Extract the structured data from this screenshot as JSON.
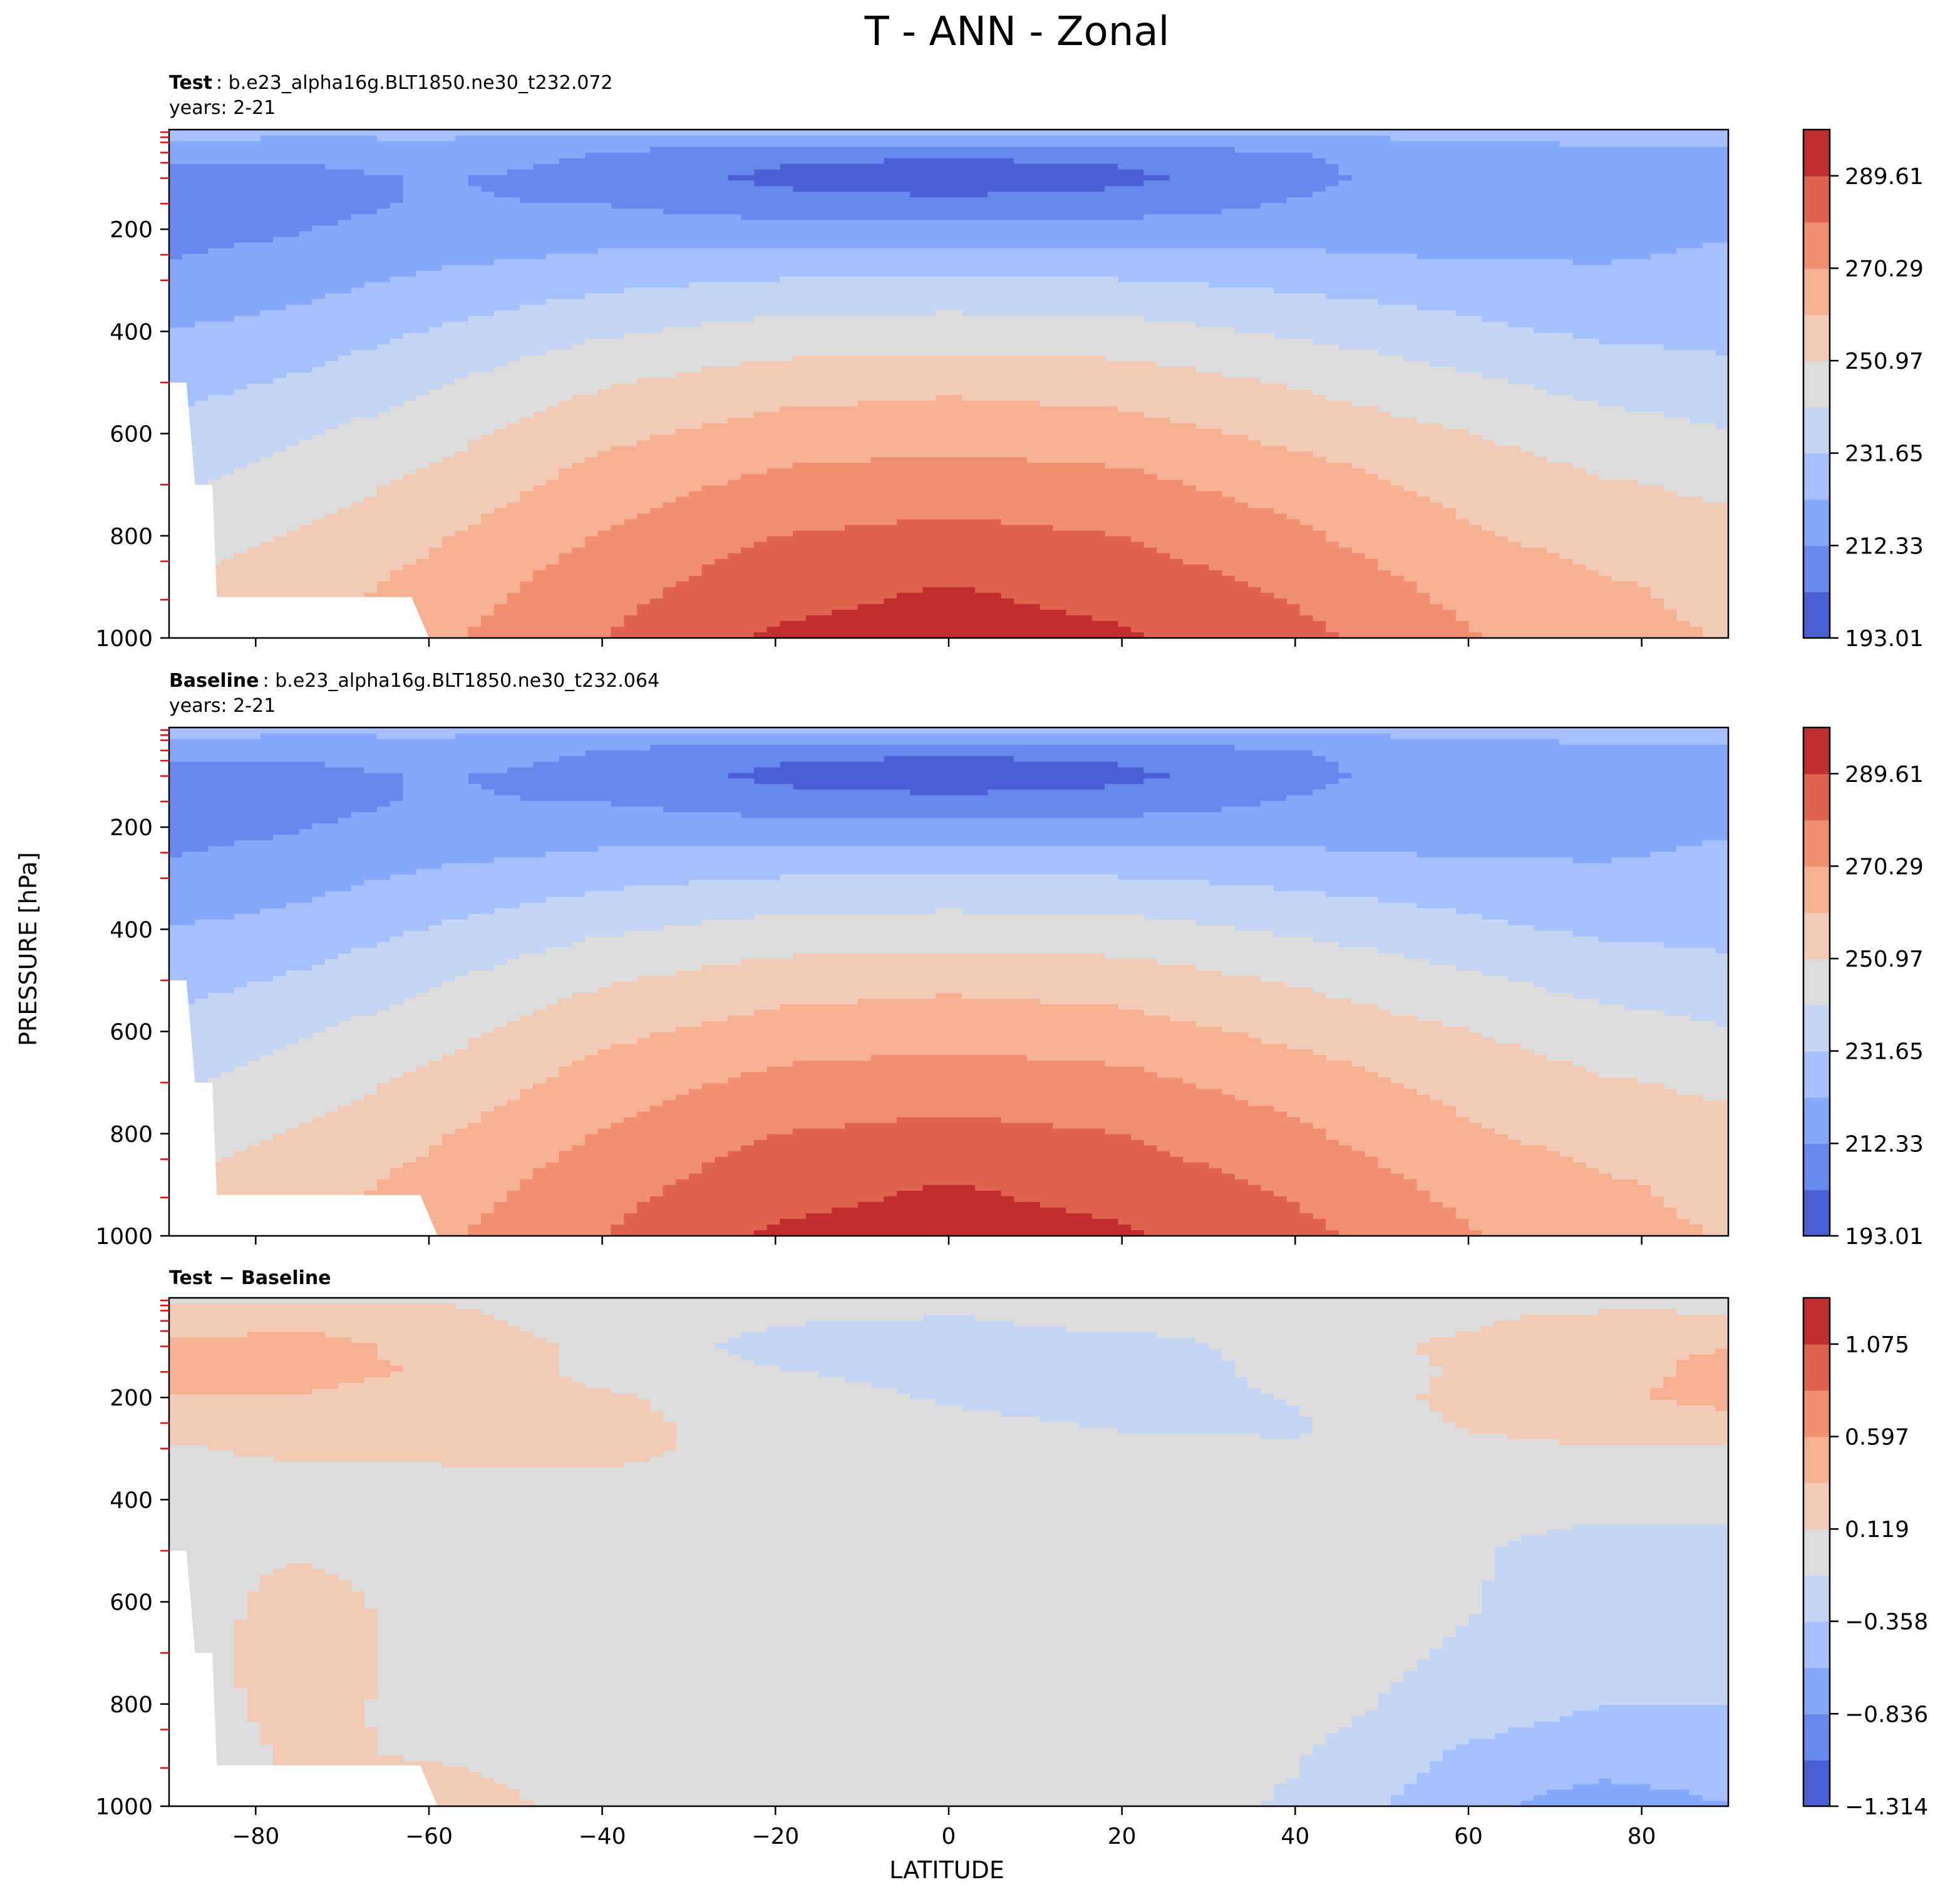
{
  "figure": {
    "title": "T - ANN - Zonal",
    "ylabel": "PRESSURE [hPa]",
    "xlabel": "LATITUDE"
  },
  "colors": {
    "levels": [
      "#4a5fd3",
      "#6788ec",
      "#86a8fb",
      "#a5c0fd",
      "#c4d5f4",
      "#dcdcdc",
      "#f2cbb7",
      "#f6b193",
      "#f18f71",
      "#df634f",
      "#c12e2f"
    ],
    "missing": "#ffffff",
    "tick_red": "#ff0000"
  },
  "chart_data": [
    {
      "type": "contourf",
      "panel": "test",
      "label_bold": "Test",
      "label_rest": ": b.e23_alpha16g.BLT1850.ne30_t232.072",
      "years": "years: 2-21",
      "xlim": [
        -90,
        90
      ],
      "ylim": [
        1000,
        5
      ],
      "yticks": [
        200,
        400,
        600,
        800,
        1000
      ],
      "xticks": [
        -80,
        -60,
        -40,
        -20,
        0,
        20,
        40,
        60,
        80
      ],
      "colorbar_ticks": [
        "193.01",
        "212.33",
        "231.65",
        "250.97",
        "270.29",
        "289.61"
      ],
      "colorbar_tick_values": [
        193.01,
        212.33,
        231.65,
        250.97,
        270.29,
        289.61
      ],
      "vmin": 193.01,
      "vmax": 299.27,
      "step": 9.66,
      "lat_nodes": [
        -90,
        -75,
        -60,
        -40,
        -20,
        0,
        20,
        40,
        60,
        75,
        90
      ],
      "pressure_nodes": [
        5,
        50,
        100,
        150,
        200,
        250,
        300,
        400,
        500,
        600,
        700,
        800,
        900,
        1000
      ],
      "values": [
        [
          228,
          226,
          226,
          225,
          225,
          226,
          226,
          226,
          226,
          226,
          228
        ],
        [
          214,
          214,
          216,
          212,
          206,
          204,
          206,
          212,
          218,
          220,
          221
        ],
        [
          210,
          210,
          213,
          210,
          200,
          197,
          200,
          210,
          217,
          220,
          221
        ],
        [
          210,
          210,
          213,
          212,
          207,
          205,
          207,
          213,
          218,
          220,
          221
        ],
        [
          210,
          212,
          215,
          217,
          216,
          216,
          216,
          218,
          219,
          220,
          221
        ],
        [
          212,
          214,
          219,
          223,
          224,
          225,
          224,
          223,
          221,
          221,
          223
        ],
        [
          215,
          218,
          224,
          229,
          232,
          233,
          232,
          229,
          226,
          224,
          225
        ],
        [
          222,
          226,
          232,
          240,
          245,
          246,
          245,
          240,
          234,
          230,
          229
        ],
        [
          228,
          233,
          240,
          250,
          256,
          258,
          256,
          250,
          243,
          238,
          235
        ],
        [
          234,
          240,
          247,
          258,
          265,
          267,
          265,
          258,
          251,
          246,
          242
        ],
        [
          240,
          246,
          253,
          265,
          273,
          275,
          273,
          266,
          257,
          252,
          249
        ],
        [
          246,
          252,
          259,
          271,
          280,
          283,
          280,
          272,
          262,
          257,
          254
        ],
        [
          251,
          256,
          264,
          276,
          286,
          290,
          286,
          278,
          267,
          262,
          258
        ],
        [
          254,
          258,
          268,
          280,
          291,
          294,
          291,
          283,
          271,
          264,
          260
        ]
      ],
      "terrain": [
        [
          -90,
          500
        ],
        [
          -88,
          500
        ],
        [
          -87,
          700
        ],
        [
          -85,
          700
        ],
        [
          -84.5,
          920
        ],
        [
          -62,
          920
        ],
        [
          -60,
          1000
        ],
        [
          -90,
          1000
        ]
      ]
    },
    {
      "type": "contourf",
      "panel": "baseline",
      "label_bold": "Baseline",
      "label_rest": ": b.e23_alpha16g.BLT1850.ne30_t232.064",
      "years": "years: 2-21",
      "xlim": [
        -90,
        90
      ],
      "ylim": [
        1000,
        5
      ],
      "yticks": [
        200,
        400,
        600,
        800,
        1000
      ],
      "xticks": [
        -80,
        -60,
        -40,
        -20,
        0,
        20,
        40,
        60,
        80
      ],
      "colorbar_ticks": [
        "193.01",
        "212.33",
        "231.65",
        "250.97",
        "270.29",
        "289.61"
      ],
      "colorbar_tick_values": [
        193.01,
        212.33,
        231.65,
        250.97,
        270.29,
        289.61
      ],
      "vmin": 193.01,
      "vmax": 299.27,
      "step": 9.66,
      "lat_nodes": [
        -90,
        -75,
        -60,
        -40,
        -20,
        0,
        20,
        40,
        60,
        75,
        90
      ],
      "pressure_nodes": [
        5,
        50,
        100,
        150,
        200,
        250,
        300,
        400,
        500,
        600,
        700,
        800,
        900,
        1000
      ],
      "values": [
        [
          228,
          226,
          226,
          225,
          225,
          226,
          226,
          226,
          226,
          226,
          228
        ],
        [
          214,
          214,
          216,
          212,
          206,
          204,
          206,
          212,
          218,
          220,
          221
        ],
        [
          210,
          210,
          213,
          210,
          200,
          197,
          200,
          210,
          217,
          220,
          221
        ],
        [
          210,
          210,
          213,
          212,
          207,
          205,
          207,
          213,
          218,
          220,
          221
        ],
        [
          210,
          212,
          215,
          217,
          216,
          216,
          216,
          218,
          219,
          220,
          221
        ],
        [
          212,
          214,
          219,
          223,
          224,
          225,
          224,
          223,
          221,
          221,
          223
        ],
        [
          215,
          218,
          224,
          229,
          232,
          233,
          232,
          229,
          226,
          224,
          225
        ],
        [
          222,
          226,
          232,
          240,
          245,
          246,
          245,
          240,
          234,
          230,
          229
        ],
        [
          228,
          233,
          240,
          250,
          256,
          258,
          256,
          250,
          243,
          238,
          235
        ],
        [
          234,
          240,
          247,
          258,
          265,
          267,
          265,
          258,
          251,
          246,
          242
        ],
        [
          240,
          246,
          253,
          265,
          273,
          275,
          273,
          266,
          257,
          252,
          249
        ],
        [
          246,
          252,
          259,
          271,
          280,
          283,
          280,
          272,
          262,
          257,
          254
        ],
        [
          251,
          256,
          264,
          276,
          286,
          290,
          286,
          278,
          267,
          262,
          258
        ],
        [
          254,
          258,
          268,
          280,
          291,
          294,
          291,
          283,
          271,
          264,
          260
        ]
      ],
      "terrain": [
        [
          -90,
          500
        ],
        [
          -88,
          500
        ],
        [
          -87,
          700
        ],
        [
          -85,
          700
        ],
        [
          -84.5,
          920
        ],
        [
          -61,
          920
        ],
        [
          -59,
          1000
        ],
        [
          -90,
          1000
        ]
      ]
    },
    {
      "type": "contourf",
      "panel": "diff",
      "label_bold": "Test − Baseline",
      "label_rest": "",
      "years": "",
      "xlim": [
        -90,
        90
      ],
      "ylim": [
        1000,
        5
      ],
      "yticks": [
        200,
        400,
        600,
        800,
        1000
      ],
      "xticks": [
        -80,
        -60,
        -40,
        -20,
        0,
        20,
        40,
        60,
        80
      ],
      "colorbar_ticks": [
        "−1.314",
        "−0.836",
        "−0.358",
        "0.119",
        "0.597",
        "1.075"
      ],
      "colorbar_tick_values": [
        -1.314,
        -0.836,
        -0.358,
        0.119,
        0.597,
        1.075
      ],
      "vmin": -1.314,
      "vmax": 1.314,
      "step": 0.239,
      "lat_nodes": [
        -90,
        -75,
        -60,
        -40,
        -20,
        0,
        20,
        40,
        60,
        75,
        90
      ],
      "pressure_nodes": [
        5,
        50,
        100,
        150,
        200,
        250,
        300,
        400,
        500,
        600,
        700,
        800,
        900,
        1000
      ],
      "values": [
        [
          0.05,
          0.05,
          0.1,
          0.05,
          0.15,
          0.0,
          0.0,
          0.0,
          -0.1,
          -0.15,
          -0.1
        ],
        [
          0.25,
          0.3,
          0.2,
          0.0,
          -0.1,
          -0.15,
          -0.05,
          -0.1,
          0.05,
          0.3,
          0.25
        ],
        [
          0.4,
          0.45,
          0.3,
          0.05,
          -0.2,
          -0.2,
          -0.2,
          -0.05,
          0.2,
          0.35,
          0.35
        ],
        [
          0.4,
          0.4,
          0.35,
          0.05,
          -0.1,
          -0.2,
          -0.25,
          -0.05,
          0.15,
          0.3,
          0.4
        ],
        [
          0.35,
          0.35,
          0.3,
          0.15,
          0.0,
          -0.15,
          -0.25,
          -0.1,
          0.2,
          0.3,
          0.45
        ],
        [
          0.25,
          0.25,
          0.25,
          0.2,
          0.0,
          -0.05,
          -0.15,
          -0.15,
          0.15,
          0.25,
          0.25
        ],
        [
          0.1,
          0.15,
          0.15,
          0.2,
          0.0,
          0.0,
          -0.05,
          -0.1,
          0.05,
          0.1,
          0.1
        ],
        [
          0.05,
          0.05,
          0.05,
          0.0,
          0.0,
          0.0,
          0.0,
          -0.05,
          -0.05,
          -0.05,
          -0.05
        ],
        [
          0.05,
          0.1,
          0.05,
          0.0,
          0.0,
          0.0,
          0.0,
          -0.05,
          -0.1,
          -0.2,
          -0.2
        ],
        [
          0.0,
          0.2,
          0.05,
          0.0,
          0.0,
          0.0,
          0.0,
          0.0,
          -0.1,
          -0.25,
          -0.25
        ],
        [
          0.0,
          0.25,
          0.05,
          0.0,
          0.0,
          0.0,
          0.0,
          0.0,
          -0.15,
          -0.3,
          -0.3
        ],
        [
          0.0,
          0.2,
          0.05,
          0.0,
          0.0,
          0.0,
          0.0,
          0.0,
          -0.25,
          -0.35,
          -0.35
        ],
        [
          0.0,
          0.15,
          0.1,
          0.0,
          0.0,
          0.0,
          0.0,
          -0.1,
          -0.4,
          -0.5,
          -0.5
        ],
        [
          0.0,
          0.15,
          0.3,
          0.0,
          0.0,
          0.0,
          0.0,
          -0.15,
          -0.55,
          -0.7,
          -0.6
        ]
      ],
      "terrain": [
        [
          -90,
          500
        ],
        [
          -88,
          500
        ],
        [
          -87,
          700
        ],
        [
          -85,
          700
        ],
        [
          -84.5,
          920
        ],
        [
          -61,
          920
        ],
        [
          -59,
          1000
        ],
        [
          -90,
          1000
        ]
      ]
    }
  ]
}
